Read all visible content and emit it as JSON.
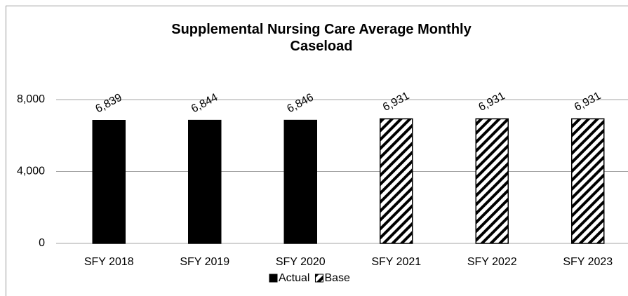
{
  "chart_data": {
    "type": "bar",
    "title": "Supplemental Nursing Care Average Monthly Caseload",
    "categories": [
      "SFY 2018",
      "SFY 2019",
      "SFY 2020",
      "SFY 2021",
      "SFY 2022",
      "SFY 2023"
    ],
    "series": [
      {
        "name": "Actual",
        "color": "#000000",
        "hatch": false,
        "values": [
          6839,
          6844,
          6846,
          null,
          null,
          null
        ],
        "value_labels": [
          "6,839",
          "6,844",
          "6,846",
          null,
          null,
          null
        ]
      },
      {
        "name": "Base",
        "color": "#000000",
        "hatch": true,
        "values": [
          null,
          null,
          null,
          6931,
          6931,
          6931
        ],
        "value_labels": [
          null,
          null,
          null,
          "6,931",
          "6,931",
          "6,931"
        ]
      }
    ],
    "ylim": [
      0,
      8000
    ],
    "yticks": [
      0,
      {
        "value": 4000,
        "label": "4,000"
      },
      {
        "value": 8000,
        "label": "8,000"
      }
    ],
    "grid": true,
    "legend": "bottom"
  }
}
